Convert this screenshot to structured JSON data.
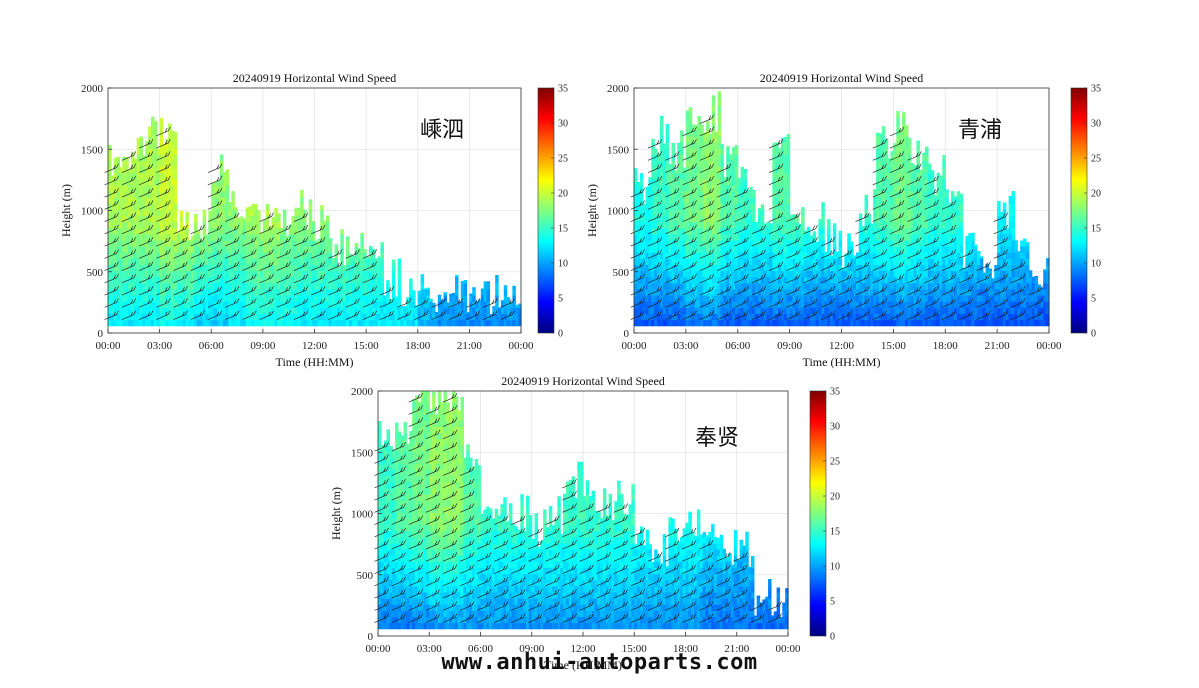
{
  "watermark": "www.anhui-autoparts.com",
  "colormap": [
    "#00007f",
    "#0000ff",
    "#007fff",
    "#00ffff",
    "#7fff7f",
    "#ffff00",
    "#ff7f00",
    "#ff0000",
    "#7f0000"
  ],
  "chart_data": [
    {
      "type": "heatmap",
      "title": "20240919 Horizontal Wind Speed",
      "station": "嵊泗",
      "xlabel": "Time (HH:MM)",
      "ylabel": "Height (m)",
      "xticks": [
        "00:00",
        "03:00",
        "06:00",
        "09:00",
        "12:00",
        "15:00",
        "18:00",
        "21:00",
        "00:00"
      ],
      "yticks": [
        0,
        500,
        1000,
        1500,
        2000
      ],
      "ylim": [
        0,
        2000
      ],
      "colorbar_ticks": [
        0,
        5,
        10,
        15,
        20,
        25,
        30,
        35
      ],
      "clim": [
        0,
        35
      ],
      "grid": true,
      "time_hours": [
        0,
        1,
        2,
        3,
        4,
        5,
        6,
        7,
        8,
        9,
        10,
        11,
        12,
        13,
        14,
        15,
        16,
        17,
        18,
        19,
        20,
        21,
        22,
        23
      ],
      "top_height_m": [
        1400,
        1500,
        1600,
        1700,
        900,
        900,
        1400,
        1000,
        900,
        1000,
        900,
        1000,
        900,
        700,
        700,
        700,
        450,
        380,
        380,
        300,
        300,
        320,
        320,
        380
      ],
      "wind_speed_low_ms": [
        12,
        12,
        12,
        13,
        12,
        11,
        11,
        12,
        13,
        13,
        13,
        12,
        12,
        12,
        12,
        12,
        12,
        12,
        10,
        9,
        9,
        9,
        9,
        9
      ],
      "wind_speed_high_ms": [
        19,
        19,
        19,
        20,
        20,
        19,
        18,
        18,
        19,
        19,
        18,
        18,
        18,
        18,
        18,
        17,
        16,
        16,
        15,
        13,
        13,
        13,
        13,
        14
      ]
    },
    {
      "type": "heatmap",
      "title": "20240919 Horizontal Wind Speed",
      "station": "青浦",
      "xlabel": "Time (HH:MM)",
      "ylabel": "Height (m)",
      "xticks": [
        "00:00",
        "03:00",
        "06:00",
        "09:00",
        "12:00",
        "15:00",
        "18:00",
        "21:00",
        "00:00"
      ],
      "yticks": [
        0,
        500,
        1000,
        1500,
        2000
      ],
      "ylim": [
        0,
        2000
      ],
      "colorbar_ticks": [
        0,
        5,
        10,
        15,
        20,
        25,
        30,
        35
      ],
      "clim": [
        0,
        35
      ],
      "grid": true,
      "time_hours": [
        0,
        1,
        2,
        3,
        4,
        5,
        6,
        7,
        8,
        9,
        10,
        11,
        12,
        13,
        14,
        15,
        16,
        17,
        18,
        19,
        20,
        21,
        22,
        23
      ],
      "top_height_m": [
        1200,
        1600,
        1500,
        1700,
        1800,
        1400,
        1200,
        900,
        1600,
        1000,
        900,
        800,
        700,
        1000,
        1600,
        1700,
        1500,
        1300,
        1100,
        700,
        600,
        1000,
        600,
        450
      ],
      "wind_speed_low_ms": [
        7,
        7,
        7,
        8,
        8,
        7,
        7,
        7,
        7,
        7,
        7,
        7,
        7,
        7,
        7,
        7,
        7,
        7,
        7,
        7,
        7,
        7,
        7,
        7
      ],
      "wind_speed_high_ms": [
        14,
        15,
        16,
        17,
        18,
        16,
        15,
        15,
        16,
        16,
        15,
        15,
        15,
        15,
        16,
        17,
        16,
        15,
        15,
        14,
        13,
        13,
        13,
        12
      ]
    },
    {
      "type": "heatmap",
      "title": "20240919 Horizontal Wind Speed",
      "station": "奉贤",
      "xlabel": "Time (HH:MM)",
      "ylabel": "Height (m)",
      "xticks": [
        "00:00",
        "03:00",
        "06:00",
        "09:00",
        "12:00",
        "15:00",
        "18:00",
        "21:00",
        "00:00"
      ],
      "yticks": [
        0,
        500,
        1000,
        1500,
        2000
      ],
      "ylim": [
        0,
        2000
      ],
      "colorbar_ticks": [
        0,
        5,
        10,
        15,
        20,
        25,
        30,
        35
      ],
      "clim": [
        0,
        35
      ],
      "grid": true,
      "time_hours": [
        0,
        1,
        2,
        3,
        4,
        5,
        6,
        7,
        8,
        9,
        10,
        11,
        12,
        13,
        14,
        15,
        16,
        17,
        18,
        19,
        20,
        21,
        22,
        23
      ],
      "top_height_m": [
        1600,
        1600,
        2000,
        1900,
        2000,
        1400,
        1000,
        1000,
        1000,
        900,
        1000,
        1300,
        1100,
        1100,
        1100,
        900,
        700,
        900,
        900,
        800,
        700,
        700,
        300,
        300
      ],
      "wind_speed_low_ms": [
        8,
        8,
        8,
        9,
        9,
        9,
        9,
        9,
        9,
        9,
        9,
        9,
        9,
        9,
        9,
        9,
        9,
        9,
        9,
        8,
        8,
        8,
        8,
        8
      ],
      "wind_speed_high_ms": [
        15,
        16,
        17,
        18,
        18,
        16,
        15,
        15,
        15,
        15,
        15,
        15,
        15,
        15,
        15,
        14,
        14,
        14,
        14,
        13,
        13,
        12,
        11,
        11
      ]
    }
  ]
}
